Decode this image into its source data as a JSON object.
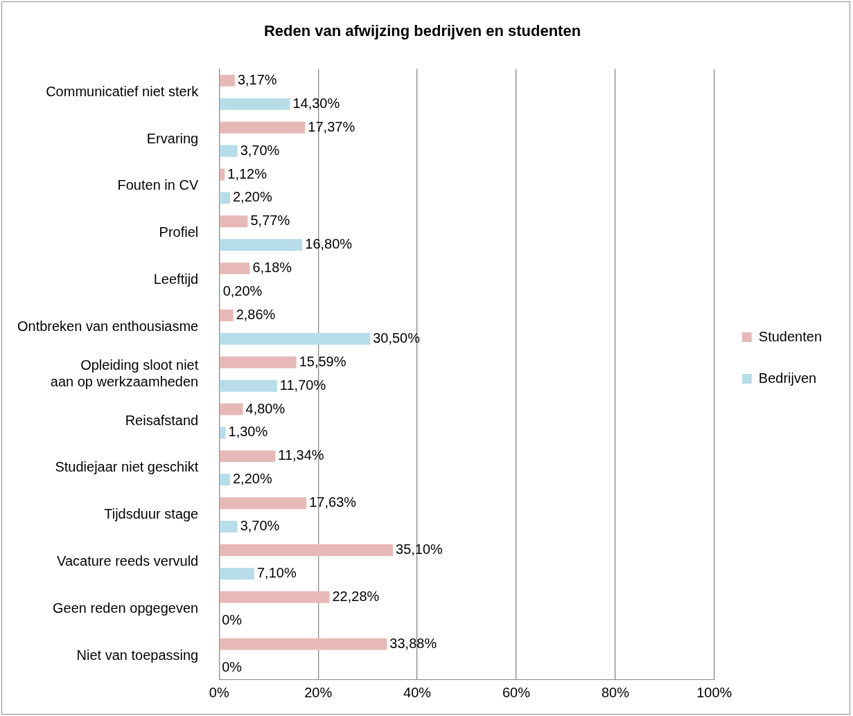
{
  "chart_data": {
    "type": "bar",
    "orientation": "horizontal",
    "title": "Reden van afwijzing bedrijven en studenten",
    "categories": [
      "Communicatief niet sterk",
      "Ervaring",
      "Fouten in CV",
      "Profiel",
      "Leeftijd",
      "Ontbreken van enthousiasme",
      "Opleiding sloot niet aan op werkzaamheden",
      "Reisafstand",
      "Studiejaar niet geschikt",
      "Tijdsduur stage",
      "Vacature reeds vervuld",
      "Geen reden opgegeven",
      "Niet van toepassing"
    ],
    "series": [
      {
        "name": "Studenten",
        "color": "#e6b9b8",
        "values": [
          3.17,
          17.37,
          1.12,
          5.77,
          6.18,
          2.86,
          15.59,
          4.8,
          11.34,
          17.63,
          35.1,
          22.28,
          33.88
        ],
        "value_labels": [
          "3,17%",
          "17,37%",
          "1,12%",
          "5,77%",
          "6,18%",
          "2,86%",
          "15,59%",
          "4,80%",
          "11,34%",
          "17,63%",
          "35,10%",
          "22,28%",
          "33,88%"
        ]
      },
      {
        "name": "Bedrijven",
        "color": "#b7dde8",
        "values": [
          14.3,
          3.7,
          2.2,
          16.8,
          0.2,
          30.5,
          11.7,
          1.3,
          2.2,
          3.7,
          7.1,
          0,
          0
        ],
        "value_labels": [
          "14,30%",
          "3,70%",
          "2,20%",
          "16,80%",
          "0,20%",
          "30,50%",
          "11,70%",
          "1,30%",
          "2,20%",
          "3,70%",
          "7,10%",
          "0%",
          "0%"
        ]
      }
    ],
    "xlim": [
      0,
      100
    ],
    "xticks": [
      {
        "value": 0,
        "label": "0%"
      },
      {
        "value": 20,
        "label": "20%"
      },
      {
        "value": 40,
        "label": "40%"
      },
      {
        "value": 60,
        "label": "60%"
      },
      {
        "value": 80,
        "label": "80%"
      },
      {
        "value": 100,
        "label": "100%"
      }
    ],
    "grid": "x",
    "legend": "right"
  }
}
